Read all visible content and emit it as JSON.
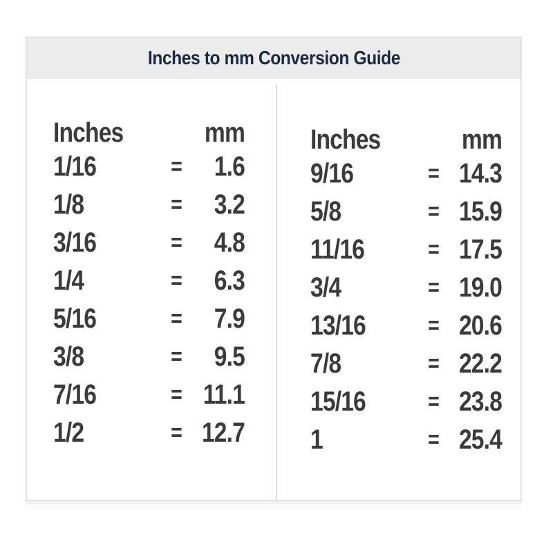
{
  "title": "Inches to mm Conversion Guide",
  "table": {
    "columns": [
      {
        "header": {
          "inches": "Inches",
          "mm": "mm"
        },
        "rows": [
          {
            "inches": "1/16",
            "eq": "=",
            "mm": "1.6"
          },
          {
            "inches": "1/8",
            "eq": "=",
            "mm": "3.2"
          },
          {
            "inches": "3/16",
            "eq": "=",
            "mm": "4.8"
          },
          {
            "inches": "1/4",
            "eq": "=",
            "mm": "6.3"
          },
          {
            "inches": "5/16",
            "eq": "=",
            "mm": "7.9"
          },
          {
            "inches": "3/8",
            "eq": "=",
            "mm": "9.5"
          },
          {
            "inches": "7/16",
            "eq": "=",
            "mm": "11.1"
          },
          {
            "inches": "1/2",
            "eq": "=",
            "mm": "12.7"
          }
        ]
      },
      {
        "header": {
          "inches": "Inches",
          "mm": "mm"
        },
        "rows": [
          {
            "inches": "9/16",
            "eq": "=",
            "mm": "14.3"
          },
          {
            "inches": "5/8",
            "eq": "=",
            "mm": "15.9"
          },
          {
            "inches": "11/16",
            "eq": "=",
            "mm": "17.5"
          },
          {
            "inches": "3/4",
            "eq": "=",
            "mm": "19.0"
          },
          {
            "inches": "13/16",
            "eq": "=",
            "mm": "20.6"
          },
          {
            "inches": "7/8",
            "eq": "=",
            "mm": "22.2"
          },
          {
            "inches": "15/16",
            "eq": "=",
            "mm": "23.8"
          },
          {
            "inches": "1",
            "eq": "=",
            "mm": "25.4"
          }
        ]
      }
    ]
  },
  "colors": {
    "header_bar_bg": "#ececec",
    "title_color": "#1c2840",
    "body_text": "#3b3b3b",
    "border": "#e2e2e2",
    "divider": "#dcdcdc"
  },
  "chart_data": {
    "type": "table",
    "title": "Inches to mm Conversion Guide",
    "column_headers": [
      "Inches",
      "mm"
    ],
    "rows": [
      [
        "1/16",
        1.6
      ],
      [
        "1/8",
        3.2
      ],
      [
        "3/16",
        4.8
      ],
      [
        "1/4",
        6.3
      ],
      [
        "5/16",
        7.9
      ],
      [
        "3/8",
        9.5
      ],
      [
        "7/16",
        11.1
      ],
      [
        "1/2",
        12.7
      ],
      [
        "9/16",
        14.3
      ],
      [
        "5/8",
        15.9
      ],
      [
        "11/16",
        17.5
      ],
      [
        "3/4",
        19.0
      ],
      [
        "13/16",
        20.6
      ],
      [
        "7/8",
        22.2
      ],
      [
        "15/16",
        23.8
      ],
      [
        "1",
        25.4
      ]
    ],
    "layout": "two side-by-side column groups, 8 rows each, separated by vertical divider"
  }
}
